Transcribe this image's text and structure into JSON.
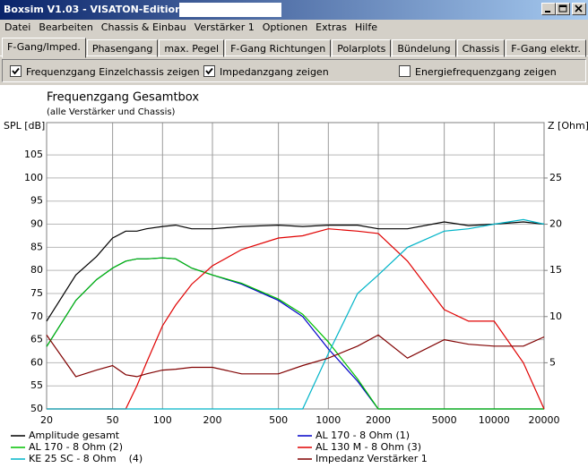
{
  "window": {
    "title": "Boxsim V1.03 - VISATON-Edition"
  },
  "menu": {
    "items": [
      "Datei",
      "Bearbeiten",
      "Chassis & Einbau",
      "Verstärker 1",
      "Optionen",
      "Extras",
      "Hilfe"
    ]
  },
  "tabs": {
    "items": [
      "F-Gang/Imped.",
      "Phasengang",
      "max. Pegel",
      "F-Gang Richtungen",
      "Polarplots",
      "Bündelung",
      "Chassis",
      "F-Gang elektr."
    ],
    "active": 0
  },
  "options": [
    {
      "label": "Frequenzgang Einzelchassis zeigen",
      "checked": true
    },
    {
      "label": "Impedanzgang zeigen",
      "checked": true
    },
    {
      "label": "Energiefrequenzgang zeigen",
      "checked": false
    }
  ],
  "chart_data": {
    "type": "line",
    "title": "Frequenzgang Gesamtbox",
    "subtitle": "(alle Verstärker und Chassis)",
    "y_label": "SPL [dB]",
    "y2_label": "Z [Ohm]",
    "x_scale": "log",
    "grid": true,
    "x": [
      20,
      30,
      40,
      50,
      60,
      70,
      80,
      100,
      120,
      150,
      200,
      300,
      500,
      700,
      1000,
      1500,
      2000,
      3000,
      5000,
      7000,
      10000,
      15000,
      20000
    ],
    "xlim": [
      20,
      20000
    ],
    "xticks": [
      20,
      50,
      100,
      200,
      500,
      1000,
      2000,
      5000,
      10000,
      20000
    ],
    "ylim": [
      50,
      112
    ],
    "yticks": [
      50,
      55,
      60,
      65,
      70,
      75,
      80,
      85,
      90,
      95,
      100,
      105
    ],
    "y2lim": [
      0,
      31
    ],
    "y2ticks": [
      5,
      10,
      15,
      20,
      25
    ],
    "series": [
      {
        "name": "Amplitude gesamt",
        "color": "#000000",
        "values": [
          69,
          79,
          83,
          87,
          88.5,
          88.5,
          89,
          89.5,
          89.8,
          89,
          89,
          89.5,
          89.8,
          89.5,
          89.8,
          89.8,
          89,
          89,
          90.5,
          89.7,
          90,
          90.5,
          90
        ]
      },
      {
        "name": "AL 170 - 8 Ohm (1)",
        "color": "#0000c8",
        "values": [
          63.5,
          73.5,
          78,
          80.5,
          82,
          82.5,
          82.5,
          82.7,
          82.5,
          80.5,
          79,
          77,
          73.5,
          70,
          63,
          56,
          50,
          50,
          50,
          50,
          50,
          50,
          50
        ]
      },
      {
        "name": "AL 170 - 8 Ohm (2)",
        "color": "#00c000",
        "values": [
          63.5,
          73.5,
          78,
          80.5,
          82,
          82.5,
          82.5,
          82.7,
          82.5,
          80.5,
          79,
          77.2,
          73.8,
          70.5,
          64.5,
          56.5,
          50,
          50,
          50,
          50,
          50,
          50,
          50
        ]
      },
      {
        "name": "AL 130 M - 8 Ohm (3)",
        "color": "#e00000",
        "values": [
          50,
          50,
          50,
          50,
          50,
          55,
          60,
          68,
          72.5,
          77,
          81,
          84.5,
          87,
          87.5,
          89,
          88.5,
          88,
          82,
          71.5,
          69,
          69,
          60,
          50
        ]
      },
      {
        "name": "KE 25 SC - 8 Ohm    (4)",
        "color": "#00b4c8",
        "values": [
          50,
          50,
          50,
          50,
          50,
          50,
          50,
          50,
          50,
          50,
          50,
          50,
          50,
          50,
          62,
          75,
          79,
          85,
          88.5,
          89,
          90,
          91,
          90
        ]
      },
      {
        "name": "Impedanz Verstärker 1",
        "color": "#800000",
        "axis": "y2",
        "values": [
          8,
          3.5,
          4.2,
          4.7,
          3.7,
          3.5,
          3.8,
          4.2,
          4.3,
          4.5,
          4.5,
          3.8,
          3.8,
          4.7,
          5.5,
          6.8,
          8,
          5.5,
          7.5,
          7,
          6.8,
          6.8,
          7.8
        ]
      }
    ]
  }
}
